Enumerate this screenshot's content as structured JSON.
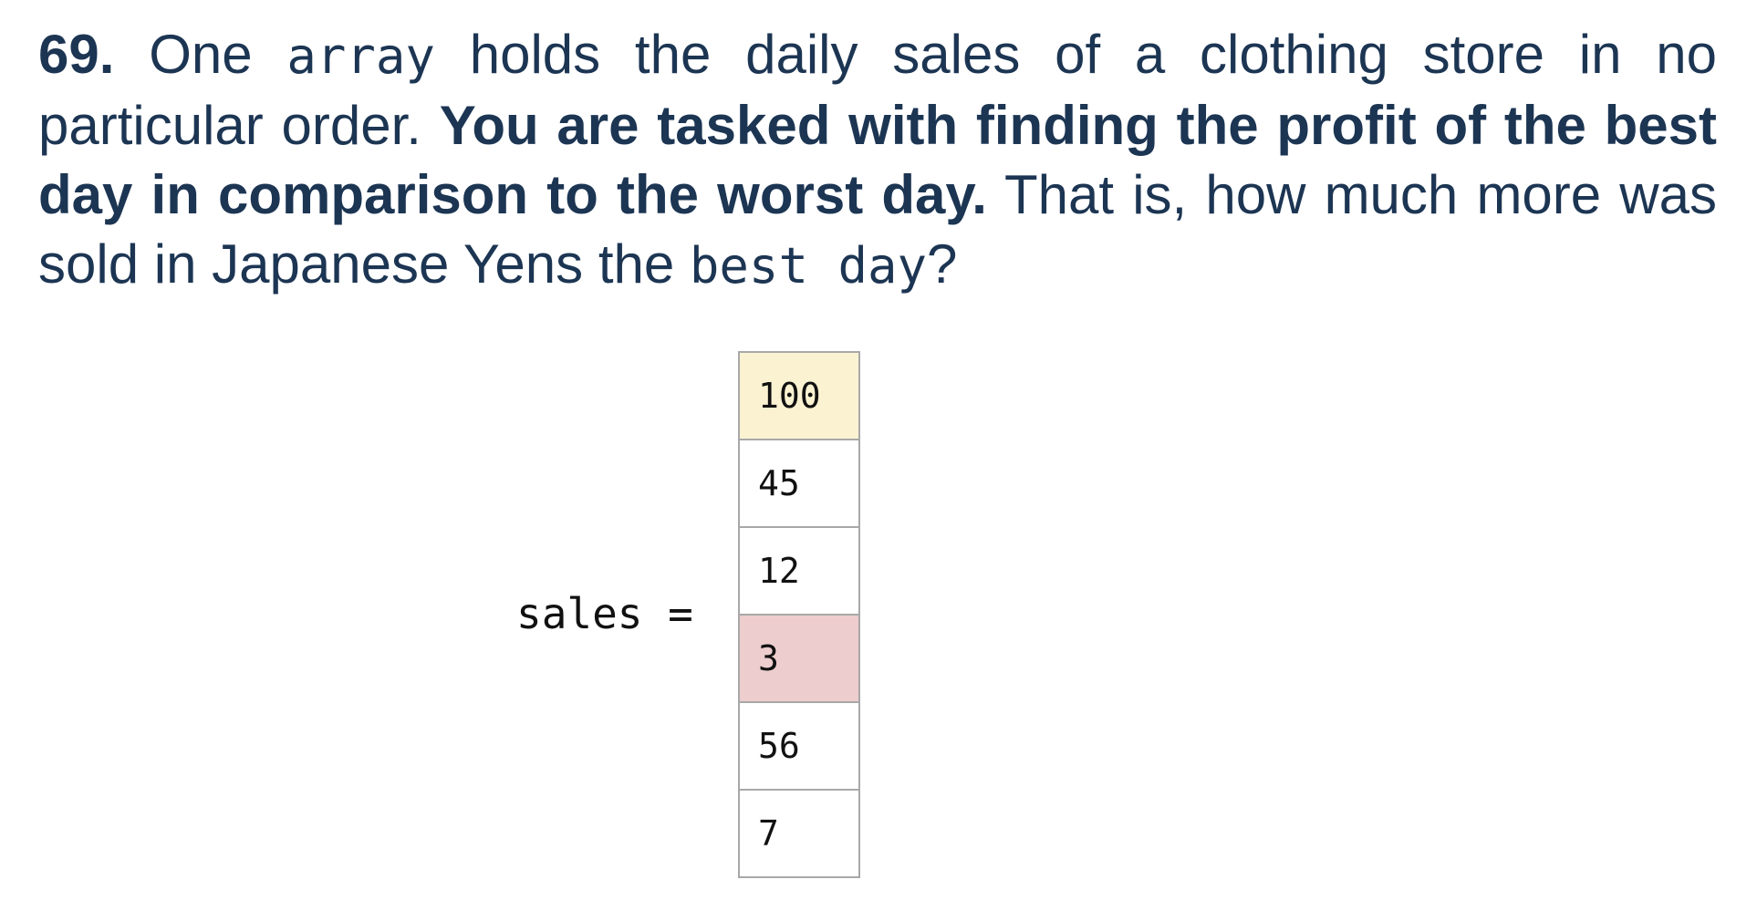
{
  "question": {
    "number": "69.",
    "text1": " One ",
    "code1": "array",
    "text2": " holds the daily sales of a clothing store in no particular order. ",
    "bold": "You are tasked with finding the profit of the best day in comparison to the worst day.",
    "text3": " That is, how much more was sold in Japanese Yens the ",
    "code2": "best day",
    "text4": "?"
  },
  "array": {
    "label": "sales =",
    "values": [
      "100",
      "45",
      "12",
      "3",
      "56",
      "7"
    ],
    "highlight_max_color": "#fbf2d2",
    "highlight_min_color": "#edcdcd"
  }
}
